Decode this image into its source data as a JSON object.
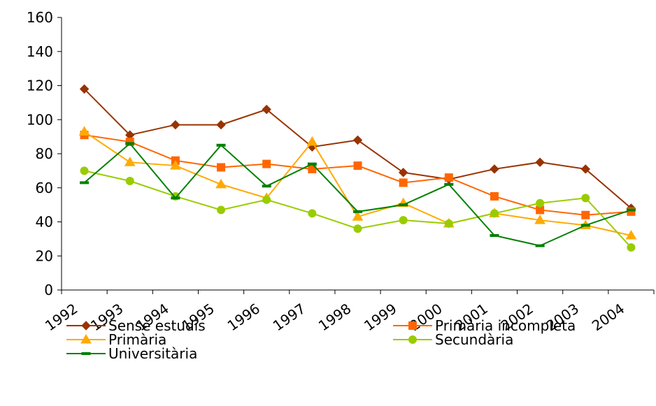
{
  "chart_data": {
    "type": "line",
    "categories": [
      "1992",
      "1993",
      "1994",
      "1995",
      "1996",
      "1997",
      "1998",
      "1999",
      "2000",
      "2001",
      "2002",
      "2003",
      "2004"
    ],
    "series": [
      {
        "name": "Sense estudis",
        "color": "#993300",
        "marker": "diamond",
        "values": [
          118,
          91,
          97,
          97,
          106,
          84,
          88,
          69,
          65,
          71,
          75,
          71,
          48
        ]
      },
      {
        "name": "Primària incompleta",
        "color": "#ff6600",
        "marker": "square",
        "values": [
          91,
          87,
          76,
          72,
          74,
          71,
          73,
          63,
          66,
          55,
          47,
          44,
          46
        ]
      },
      {
        "name": "Primària",
        "color": "#ffaa00",
        "marker": "triangle",
        "values": [
          93,
          75,
          73,
          62,
          54,
          87,
          43,
          51,
          39,
          45,
          41,
          38,
          32
        ]
      },
      {
        "name": "Secundària",
        "color": "#99cc00",
        "marker": "circle",
        "values": [
          70,
          64,
          55,
          47,
          53,
          45,
          36,
          41,
          39,
          45,
          51,
          54,
          25
        ]
      },
      {
        "name": "Universitària",
        "color": "#008000",
        "marker": "dash",
        "values": [
          63,
          86,
          54,
          85,
          61,
          74,
          46,
          50,
          62,
          32,
          26,
          38,
          47
        ]
      }
    ],
    "ylim": [
      0,
      160
    ],
    "yticks": [
      0,
      20,
      40,
      60,
      80,
      100,
      120,
      140,
      160
    ],
    "grid": false
  }
}
